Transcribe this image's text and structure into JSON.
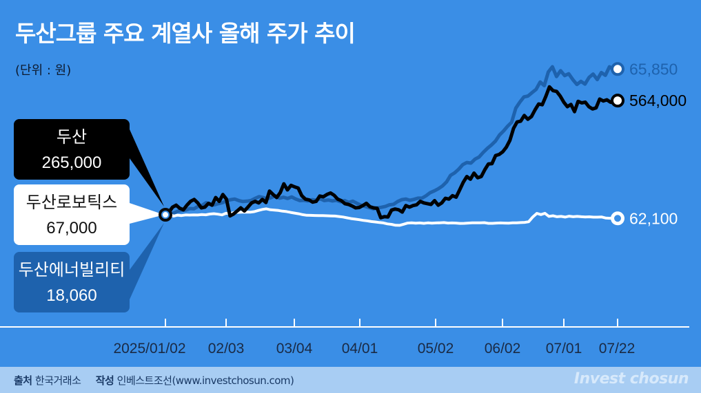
{
  "title": "두산그룹 주요 계열사 올해 주가 추이",
  "unit": "(단위 : 원)",
  "footer": {
    "source_label": "출처",
    "source": "한국거래소",
    "author_label": "작성",
    "author": "인베스트조선(www.investchosun.com)",
    "brand": "Invest chosun"
  },
  "colors": {
    "background": "#3a8ee6",
    "doosan": "#000000",
    "robotics": "#ffffff",
    "energy": "#1e62ad",
    "axis_label": "#1a2a44",
    "footer_bg": "#a8cdf3"
  },
  "chart_data": {
    "type": "line",
    "x_ticks": [
      "2025/01/02",
      "02/03",
      "03/04",
      "04/01",
      "05/02",
      "06/02",
      "07/01",
      "07/22"
    ],
    "series": [
      {
        "name": "두산",
        "start_label": "265,000",
        "end_label": "564,000",
        "start_value": 265000,
        "end_value": 564000,
        "values": [
          265000,
          272000,
          285000,
          290000,
          282000,
          278000,
          290000,
          300000,
          305000,
          296000,
          283000,
          285000,
          295000,
          290000,
          310000,
          300000,
          318000,
          306000,
          262000,
          267000,
          275000,
          283000,
          275000,
          285000,
          296000,
          300000,
          296000,
          305000,
          297000,
          327000,
          318000,
          310000,
          323000,
          346000,
          330000,
          342000,
          338000,
          335000,
          315000,
          306000,
          304000,
          298000,
          300000,
          314000,
          312000,
          318000,
          322000,
          316000,
          306000,
          302000,
          294000,
          292000,
          288000,
          283000,
          284000,
          289000,
          295000,
          286000,
          283000,
          282000,
          257000,
          260000,
          259000,
          277000,
          280000,
          278000,
          272000,
          289000,
          285000,
          289000,
          291000,
          300000,
          296000,
          294000,
          292000,
          302000,
          290000,
          296000,
          308000,
          306000,
          315000,
          311000,
          330000,
          350000,
          365000,
          358000,
          374000,
          362000,
          365000,
          383000,
          398000,
          399000,
          420000,
          423000,
          430000,
          442000,
          460000,
          491000,
          508000,
          510000,
          525000,
          515000,
          522000,
          540000,
          555000,
          553000,
          575000,
          600000,
          590000,
          588000,
          576000,
          560000,
          548000,
          554000,
          535000,
          562000,
          558000,
          560000,
          548000,
          542000,
          545000,
          568000,
          563000,
          566000,
          560000,
          558000,
          564000
        ]
      },
      {
        "name": "두산로보틱스",
        "start_label": "67,000",
        "end_label": "62,100",
        "start_value": 67000,
        "end_value": 62100,
        "values": [
          67000,
          68100,
          65100,
          66400,
          65900,
          66700,
          66500,
          66800,
          66600,
          67200,
          66900,
          67900,
          68400,
          67700,
          66800,
          69000,
          68500,
          70000,
          70300,
          70400,
          70600,
          70400,
          71200,
          72800,
          74200,
          75000,
          73700,
          73300,
          72800,
          71800,
          71300,
          70200,
          69200,
          68300,
          67100,
          66300,
          66200,
          66000,
          65900,
          65800,
          65600,
          65400,
          65200,
          64600,
          63900,
          62800,
          61800,
          61000,
          60300,
          59400,
          58700,
          57800,
          57200,
          56500,
          55900,
          54600,
          54000,
          52800,
          52700,
          54200,
          55700,
          56000,
          55600,
          55900,
          55400,
          56000,
          55600,
          55900,
          56100,
          56400,
          55700,
          55900,
          55700,
          55300,
          55400,
          55700,
          56000,
          56100,
          56100,
          56300,
          55400,
          55400,
          55700,
          55900,
          55700,
          55600,
          56100,
          56100,
          56400,
          56700,
          57600,
          64000,
          68900,
          67200,
          69000,
          64800,
          65600,
          64300,
          64800,
          63800,
          65000,
          64300,
          64800,
          64300,
          64000,
          64200,
          63700,
          63700,
          64000,
          62600,
          62300,
          62600,
          62100
        ]
      },
      {
        "name": "두산에너빌리티",
        "start_label": "18,060",
        "end_label": "65,850",
        "start_value": 18060,
        "end_value": 65850,
        "values": [
          18060,
          18500,
          18600,
          19200,
          19500,
          19600,
          20100,
          20000,
          20800,
          21100,
          22000,
          21500,
          21300,
          21700,
          22000,
          22600,
          23000,
          23200,
          22700,
          22400,
          22500,
          22700,
          23400,
          24000,
          23700,
          23300,
          23700,
          24300,
          23500,
          23800,
          23400,
          23900,
          23200,
          22700,
          22800,
          22600,
          23000,
          22800,
          23300,
          22700,
          22900,
          22600,
          22800,
          22300,
          22700,
          22100,
          22500,
          21800,
          21200,
          20800,
          20400,
          20000,
          20300,
          20500,
          20800,
          21300,
          21500,
          22400,
          23000,
          23200,
          22800,
          23100,
          23500,
          23500,
          24300,
          25300,
          25900,
          26600,
          27500,
          28800,
          31000,
          31800,
          33000,
          34500,
          35200,
          35000,
          36300,
          37000,
          38500,
          39800,
          40900,
          42200,
          44200,
          45500,
          47100,
          48400,
          53000,
          55000,
          56700,
          57000,
          58100,
          59200,
          61600,
          60400,
          64900,
          66600,
          63400,
          65300,
          63700,
          64300,
          62400,
          60800,
          61800,
          60900,
          63100,
          64200,
          62400,
          64700,
          63800,
          66600,
          65700,
          65850
        ]
      }
    ]
  }
}
